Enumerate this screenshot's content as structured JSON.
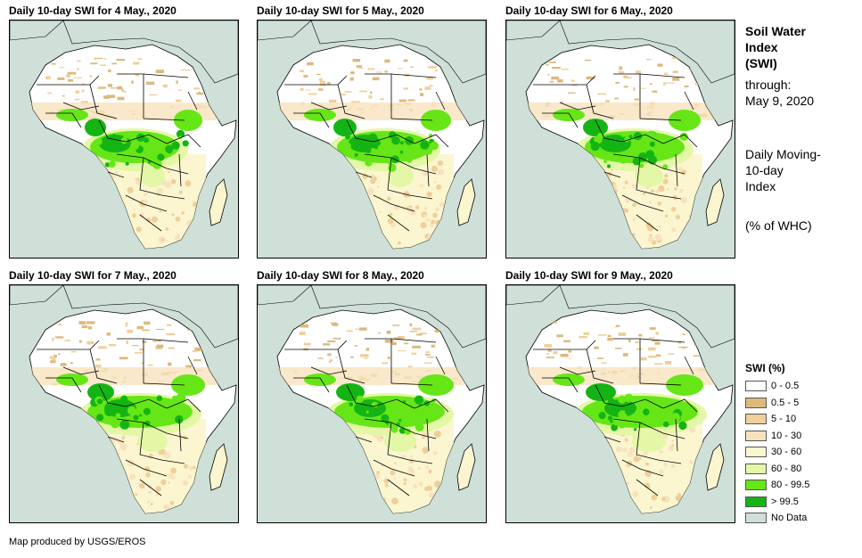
{
  "panels": [
    {
      "title": "Daily 10-day SWI for 4 May., 2020"
    },
    {
      "title": "Daily 10-day SWI for 5 May., 2020"
    },
    {
      "title": "Daily 10-day SWI for 6 May., 2020"
    },
    {
      "title": "Daily 10-day SWI for 7 May., 2020"
    },
    {
      "title": "Daily 10-day SWI for 8 May., 2020"
    },
    {
      "title": "Daily 10-day SWI for 9 May., 2020"
    }
  ],
  "sidebar": {
    "title_line1": "Soil Water",
    "title_line2": "Index",
    "title_line3": "(SWI)",
    "through_label": "through:",
    "through_date": "May 9, 2020",
    "index_line1": "Daily Moving-",
    "index_line2": "10-day",
    "index_line3": "Index",
    "unit": "(% of WHC)"
  },
  "legend": {
    "title": "SWI (%)",
    "items": [
      {
        "label": "0 - 0.5",
        "color": "#ffffff"
      },
      {
        "label": "0.5 - 5",
        "color": "#ddb97e"
      },
      {
        "label": "5 - 10",
        "color": "#efcf9a"
      },
      {
        "label": "10 - 30",
        "color": "#f8e2bd"
      },
      {
        "label": "30 - 60",
        "color": "#fbf6cf"
      },
      {
        "label": "60 - 80",
        "color": "#e3f7a6"
      },
      {
        "label": "80 - 99.5",
        "color": "#66e616"
      },
      {
        "label": "> 99.5",
        "color": "#14b414"
      },
      {
        "label": "No Data",
        "color": "#cfe0d8"
      }
    ]
  },
  "credit": "Map produced by USGS/EROS"
}
